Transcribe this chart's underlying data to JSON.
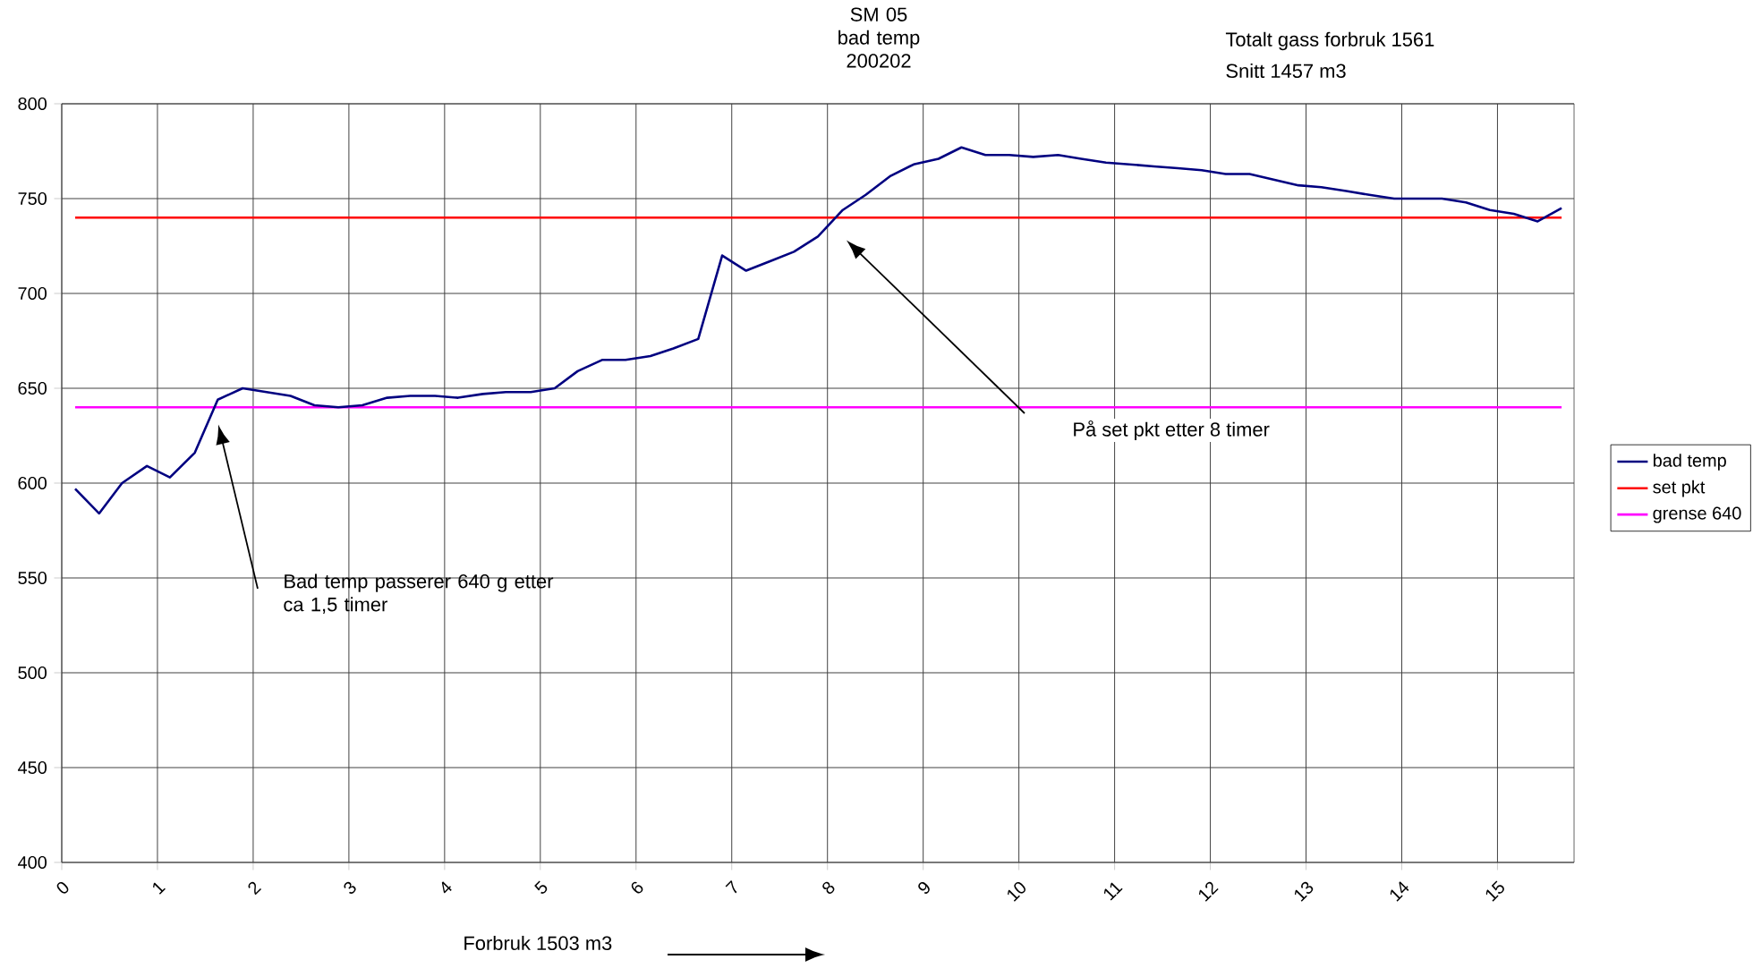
{
  "chart_data": {
    "type": "line",
    "title": "SM 05 bad temp 200202",
    "xlim": [
      0,
      15.8
    ],
    "ylim": [
      400,
      800
    ],
    "xticks": [
      0,
      1,
      2,
      3,
      4,
      5,
      6,
      7,
      8,
      9,
      10,
      11,
      12,
      13,
      14,
      15
    ],
    "yticks": [
      400,
      450,
      500,
      550,
      600,
      650,
      700,
      750,
      800
    ],
    "grid": true,
    "legend": "right",
    "marker": "none",
    "line_style": "solid",
    "series": [
      {
        "name": "bad temp",
        "color": "#000080",
        "x": [
          0.14,
          0.39,
          0.63,
          0.89,
          1.13,
          1.39,
          1.63,
          1.89,
          2.14,
          2.39,
          2.64,
          2.89,
          3.14,
          3.4,
          3.64,
          3.9,
          4.14,
          4.4,
          4.64,
          4.9,
          5.15,
          5.39,
          5.65,
          5.89,
          6.15,
          6.39,
          6.65,
          6.9,
          7.15,
          7.4,
          7.65,
          7.9,
          8.16,
          8.4,
          8.66,
          8.9,
          9.16,
          9.4,
          9.65,
          9.9,
          10.15,
          10.41,
          10.65,
          10.91,
          11.16,
          11.41,
          11.66,
          11.91,
          12.16,
          12.41,
          12.66,
          12.92,
          13.16,
          13.42,
          13.66,
          13.92,
          14.17,
          14.42,
          14.67,
          14.92,
          15.17,
          15.42,
          15.67
        ],
        "values": [
          597,
          584,
          600,
          609,
          603,
          616,
          644,
          650,
          648,
          646,
          641,
          640,
          641,
          645,
          646,
          646,
          645,
          647,
          648,
          648,
          650,
          659,
          665,
          665,
          667,
          671,
          676,
          720,
          712,
          717,
          722,
          730,
          744,
          752,
          762,
          768,
          771,
          777,
          773,
          773,
          772,
          773,
          771,
          769,
          768,
          767,
          766,
          765,
          763,
          763,
          760,
          757,
          756,
          754,
          752,
          750,
          750,
          750,
          748,
          744,
          742,
          738,
          745
        ]
      },
      {
        "name": "set pkt",
        "color": "#ff0000",
        "x": [
          0.14,
          15.67
        ],
        "values": [
          740,
          740
        ]
      },
      {
        "name": "grense 640",
        "color": "#ff00ff",
        "x": [
          0.14,
          15.67
        ],
        "values": [
          640,
          640
        ]
      }
    ],
    "annotations": [
      "Bad temp passerer 640 g etter ca 1,5 timer",
      "På set pkt etter 8 timer",
      "Totalt gass forbruk 1561",
      "Snitt 1457 m3",
      "Forbruk 1503 m3"
    ]
  }
}
